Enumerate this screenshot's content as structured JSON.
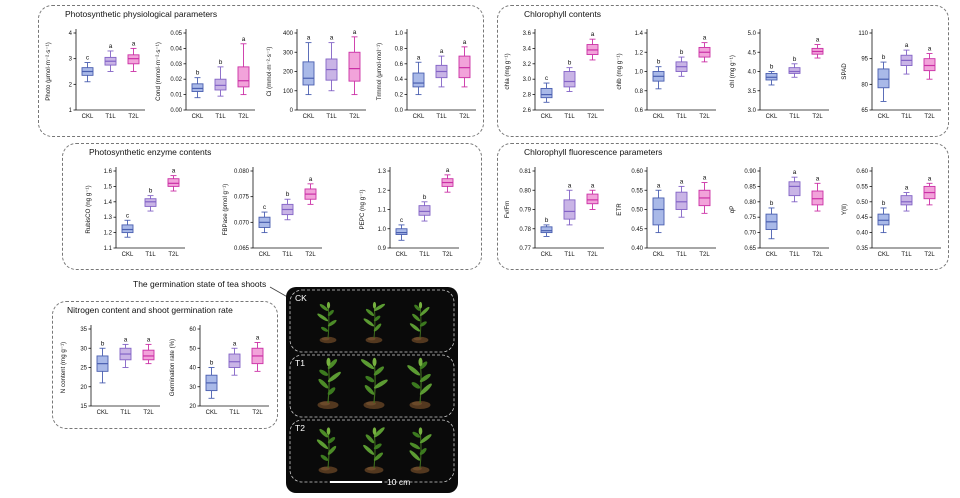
{
  "photo_figure": {
    "label": "The germination state of tea shoots",
    "rows": [
      "CK",
      "T1",
      "T2"
    ],
    "scale_bar": "10 cm"
  },
  "chart_data": {
    "type": "box",
    "groups": [
      "CKL",
      "T1L",
      "T2L"
    ],
    "box_colors": {
      "fill": [
        "#a9b9e8",
        "#c9b4e6",
        "#f2a3da"
      ],
      "edge": [
        "#4a5fb0",
        "#8363c6",
        "#cb30a6"
      ]
    },
    "panels": [
      {
        "title": "Photosynthetic physiological parameters",
        "charts": [
          {
            "ylabel": "Photo (μmol·m⁻²·s⁻¹)",
            "ylim": [
              1,
              4
            ],
            "yticks": [
              "1",
              "2",
              "3",
              "4"
            ],
            "sig": [
              "c",
              "a",
              "a"
            ],
            "boxes": [
              {
                "lo": 2.1,
                "q1": 2.35,
                "med": 2.5,
                "q3": 2.65,
                "hi": 2.85
              },
              {
                "lo": 2.5,
                "q1": 2.75,
                "med": 2.9,
                "q3": 3.05,
                "hi": 3.3
              },
              {
                "lo": 2.5,
                "q1": 2.8,
                "med": 3.0,
                "q3": 3.15,
                "hi": 3.4
              }
            ]
          },
          {
            "ylabel": "Cond (mmol·m⁻²·s⁻¹)",
            "ylim": [
              0,
              0.05
            ],
            "yticks": [
              "0.00",
              "0.01",
              "0.02",
              "0.03",
              "0.04",
              "0.05"
            ],
            "sig": [
              "b",
              "b",
              "a"
            ],
            "boxes": [
              {
                "lo": 0.008,
                "q1": 0.012,
                "med": 0.014,
                "q3": 0.017,
                "hi": 0.021
              },
              {
                "lo": 0.009,
                "q1": 0.013,
                "med": 0.016,
                "q3": 0.02,
                "hi": 0.028
              },
              {
                "lo": 0.01,
                "q1": 0.015,
                "med": 0.019,
                "q3": 0.028,
                "hi": 0.043
              }
            ]
          },
          {
            "ylabel": "Ci (mmol·m⁻²·s⁻¹)",
            "ylim": [
              0,
              400
            ],
            "yticks": [
              "0",
              "100",
              "200",
              "300",
              "400"
            ],
            "sig": [
              "a",
              "a",
              "a"
            ],
            "boxes": [
              {
                "lo": 80,
                "q1": 130,
                "med": 165,
                "q3": 250,
                "hi": 350
              },
              {
                "lo": 100,
                "q1": 155,
                "med": 210,
                "q3": 265,
                "hi": 350
              },
              {
                "lo": 80,
                "q1": 150,
                "med": 215,
                "q3": 300,
                "hi": 380
              }
            ]
          },
          {
            "ylabel": "Trmmol (μmol·mol⁻¹)",
            "ylim": [
              0,
              1
            ],
            "yticks": [
              "0.0",
              "0.2",
              "0.4",
              "0.6",
              "0.8",
              "1.0"
            ],
            "sig": [
              "a",
              "a",
              "a"
            ],
            "boxes": [
              {
                "lo": 0.2,
                "q1": 0.3,
                "med": 0.35,
                "q3": 0.48,
                "hi": 0.62
              },
              {
                "lo": 0.3,
                "q1": 0.42,
                "med": 0.5,
                "q3": 0.58,
                "hi": 0.7
              },
              {
                "lo": 0.3,
                "q1": 0.42,
                "med": 0.55,
                "q3": 0.7,
                "hi": 0.82
              }
            ]
          }
        ]
      },
      {
        "title": "Chlorophyll contents",
        "charts": [
          {
            "ylabel": "chla (mg g⁻¹)",
            "ylim": [
              2.6,
              3.6
            ],
            "yticks": [
              "2.6",
              "2.8",
              "3.0",
              "3.2",
              "3.4",
              "3.6"
            ],
            "sig": [
              "c",
              "b",
              "a"
            ],
            "boxes": [
              {
                "lo": 2.7,
                "q1": 2.76,
                "med": 2.8,
                "q3": 2.88,
                "hi": 2.95
              },
              {
                "lo": 2.84,
                "q1": 2.9,
                "med": 2.97,
                "q3": 3.1,
                "hi": 3.15
              },
              {
                "lo": 3.25,
                "q1": 3.32,
                "med": 3.38,
                "q3": 3.45,
                "hi": 3.52
              }
            ]
          },
          {
            "ylabel": "chlb (mg g⁻¹)",
            "ylim": [
              0.6,
              1.4
            ],
            "yticks": [
              "0.6",
              "0.8",
              "1.0",
              "1.2",
              "1.4"
            ],
            "sig": [
              "b",
              "b",
              "a"
            ],
            "boxes": [
              {
                "lo": 0.82,
                "q1": 0.9,
                "med": 0.95,
                "q3": 1.0,
                "hi": 1.05
              },
              {
                "lo": 0.95,
                "q1": 1.0,
                "med": 1.05,
                "q3": 1.1,
                "hi": 1.15
              },
              {
                "lo": 1.1,
                "q1": 1.15,
                "med": 1.2,
                "q3": 1.25,
                "hi": 1.3
              }
            ]
          },
          {
            "ylabel": "chl (mg g⁻¹)",
            "ylim": [
              3.0,
              5.0
            ],
            "yticks": [
              "3.0",
              "3.5",
              "4.0",
              "4.5",
              "5.0"
            ],
            "sig": [
              "b",
              "b",
              "a"
            ],
            "boxes": [
              {
                "lo": 3.65,
                "q1": 3.78,
                "med": 3.85,
                "q3": 3.95,
                "hi": 4.0
              },
              {
                "lo": 3.85,
                "q1": 3.95,
                "med": 4.0,
                "q3": 4.1,
                "hi": 4.2
              },
              {
                "lo": 4.35,
                "q1": 4.45,
                "med": 4.52,
                "q3": 4.6,
                "hi": 4.7
              }
            ]
          },
          {
            "ylabel": "SPAD",
            "ylim": [
              65,
              110
            ],
            "yticks": [
              "65",
              "80",
              "95",
              "110"
            ],
            "sig": [
              "b",
              "a",
              "a"
            ],
            "boxes": [
              {
                "lo": 70,
                "q1": 78,
                "med": 83,
                "q3": 89,
                "hi": 93
              },
              {
                "lo": 86,
                "q1": 91,
                "med": 94,
                "q3": 97,
                "hi": 100
              },
              {
                "lo": 83,
                "q1": 88,
                "med": 91,
                "q3": 95,
                "hi": 98
              }
            ]
          }
        ]
      },
      {
        "title": "Photosynthetic enzyme contents",
        "charts": [
          {
            "ylabel": "RubisCO (ng g⁻¹)",
            "ylim": [
              1.1,
              1.6
            ],
            "yticks": [
              "1.1",
              "1.2",
              "1.3",
              "1.4",
              "1.5",
              "1.6"
            ],
            "sig": [
              "c",
              "b",
              "a"
            ],
            "boxes": [
              {
                "lo": 1.17,
                "q1": 1.2,
                "med": 1.22,
                "q3": 1.25,
                "hi": 1.28
              },
              {
                "lo": 1.34,
                "q1": 1.37,
                "med": 1.4,
                "q3": 1.42,
                "hi": 1.44
              },
              {
                "lo": 1.47,
                "q1": 1.5,
                "med": 1.52,
                "q3": 1.55,
                "hi": 1.57
              }
            ]
          },
          {
            "ylabel": "FBPase (pmol g⁻¹)",
            "ylim": [
              0.065,
              0.08
            ],
            "yticks": [
              "0.065",
              "0.070",
              "0.075",
              "0.080"
            ],
            "sig": [
              "c",
              "b",
              "a"
            ],
            "boxes": [
              {
                "lo": 0.068,
                "q1": 0.069,
                "med": 0.07,
                "q3": 0.071,
                "hi": 0.072
              },
              {
                "lo": 0.0705,
                "q1": 0.0715,
                "med": 0.0725,
                "q3": 0.0735,
                "hi": 0.0745
              },
              {
                "lo": 0.0735,
                "q1": 0.0745,
                "med": 0.0755,
                "q3": 0.0765,
                "hi": 0.0775
              }
            ]
          },
          {
            "ylabel": "PEPC (ng g⁻¹)",
            "ylim": [
              0.9,
              1.3
            ],
            "yticks": [
              "0.9",
              "1.0",
              "1.1",
              "1.2",
              "1.3"
            ],
            "sig": [
              "c",
              "b",
              "a"
            ],
            "boxes": [
              {
                "lo": 0.94,
                "q1": 0.97,
                "med": 0.98,
                "q3": 1.0,
                "hi": 1.02
              },
              {
                "lo": 1.04,
                "q1": 1.07,
                "med": 1.09,
                "q3": 1.12,
                "hi": 1.14
              },
              {
                "lo": 1.19,
                "q1": 1.22,
                "med": 1.24,
                "q3": 1.26,
                "hi": 1.28
              }
            ]
          }
        ]
      },
      {
        "title": "Chlorophyll fluorescence parameters",
        "charts": [
          {
            "ylabel": "Fv/Fm",
            "ylim": [
              0.77,
              0.81
            ],
            "yticks": [
              "0.77",
              "0.78",
              "0.79",
              "0.80",
              "0.81"
            ],
            "sig": [
              "b",
              "a",
              "a"
            ],
            "boxes": [
              {
                "lo": 0.776,
                "q1": 0.778,
                "med": 0.779,
                "q3": 0.781,
                "hi": 0.782
              },
              {
                "lo": 0.782,
                "q1": 0.785,
                "med": 0.789,
                "q3": 0.795,
                "hi": 0.8
              },
              {
                "lo": 0.79,
                "q1": 0.793,
                "med": 0.795,
                "q3": 0.798,
                "hi": 0.8
              }
            ]
          },
          {
            "ylabel": "ETR",
            "ylim": [
              0.4,
              0.6
            ],
            "yticks": [
              "0.40",
              "0.45",
              "0.50",
              "0.55",
              "0.60"
            ],
            "sig": [
              "a",
              "a",
              "a"
            ],
            "boxes": [
              {
                "lo": 0.44,
                "q1": 0.46,
                "med": 0.5,
                "q3": 0.53,
                "hi": 0.55
              },
              {
                "lo": 0.48,
                "q1": 0.5,
                "med": 0.52,
                "q3": 0.545,
                "hi": 0.56
              },
              {
                "lo": 0.49,
                "q1": 0.51,
                "med": 0.53,
                "q3": 0.55,
                "hi": 0.57
              }
            ]
          },
          {
            "ylabel": "qP",
            "ylim": [
              0.65,
              0.9
            ],
            "yticks": [
              "0.65",
              "0.70",
              "0.75",
              "0.80",
              "0.85",
              "0.90"
            ],
            "sig": [
              "b",
              "a",
              "a"
            ],
            "boxes": [
              {
                "lo": 0.68,
                "q1": 0.71,
                "med": 0.735,
                "q3": 0.76,
                "hi": 0.78
              },
              {
                "lo": 0.8,
                "q1": 0.82,
                "med": 0.85,
                "q3": 0.865,
                "hi": 0.88
              },
              {
                "lo": 0.77,
                "q1": 0.79,
                "med": 0.81,
                "q3": 0.835,
                "hi": 0.86
              }
            ]
          },
          {
            "ylabel": "Y(Ⅱ)",
            "ylim": [
              0.35,
              0.6
            ],
            "yticks": [
              "0.35",
              "0.40",
              "0.45",
              "0.50",
              "0.55",
              "0.60"
            ],
            "sig": [
              "b",
              "a",
              "a"
            ],
            "boxes": [
              {
                "lo": 0.4,
                "q1": 0.425,
                "med": 0.44,
                "q3": 0.46,
                "hi": 0.48
              },
              {
                "lo": 0.47,
                "q1": 0.49,
                "med": 0.5,
                "q3": 0.52,
                "hi": 0.53
              },
              {
                "lo": 0.49,
                "q1": 0.51,
                "med": 0.53,
                "q3": 0.55,
                "hi": 0.56
              }
            ]
          }
        ]
      },
      {
        "title": "Nitrogen content and shoot germination rate",
        "charts": [
          {
            "ylabel": "N content (mg g⁻¹)",
            "ylim": [
              15,
              35
            ],
            "yticks": [
              "15",
              "20",
              "25",
              "30",
              "35"
            ],
            "sig": [
              "b",
              "a",
              "a"
            ],
            "boxes": [
              {
                "lo": 21,
                "q1": 24,
                "med": 26,
                "q3": 28,
                "hi": 30
              },
              {
                "lo": 25,
                "q1": 27,
                "med": 28.5,
                "q3": 30,
                "hi": 31
              },
              {
                "lo": 26,
                "q1": 27,
                "med": 28,
                "q3": 29.5,
                "hi": 31
              }
            ]
          },
          {
            "ylabel": "Germination rate (%)",
            "ylim": [
              20,
              60
            ],
            "yticks": [
              "20",
              "30",
              "40",
              "50",
              "60"
            ],
            "sig": [
              "b",
              "a",
              "a"
            ],
            "boxes": [
              {
                "lo": 24,
                "q1": 28,
                "med": 32,
                "q3": 36,
                "hi": 40
              },
              {
                "lo": 36,
                "q1": 40,
                "med": 43,
                "q3": 47,
                "hi": 50
              },
              {
                "lo": 38,
                "q1": 42,
                "med": 46,
                "q3": 50,
                "hi": 53
              }
            ]
          }
        ]
      }
    ]
  }
}
